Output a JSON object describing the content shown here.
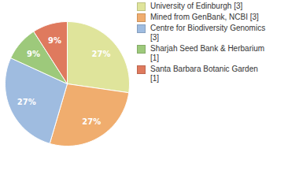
{
  "chart_data": {
    "type": "pie",
    "categories": [
      "University of Edinburgh [3]",
      "Mined from GenBank, NCBI [3]",
      "Centre for Biodiversity Genomics [3]",
      "Sharjah Seed Bank & Herbarium [1]",
      "Santa Barbara Botanic Garden [1]"
    ],
    "values": [
      27,
      27,
      27,
      9,
      9
    ],
    "value_labels": [
      "27%",
      "27%",
      "27%",
      "9%",
      "9%"
    ],
    "colors": [
      "#dfe49b",
      "#f0ad6e",
      "#9fbce0",
      "#9dc97b",
      "#df7a5e"
    ],
    "data_labels": true,
    "legend": "top-right"
  }
}
